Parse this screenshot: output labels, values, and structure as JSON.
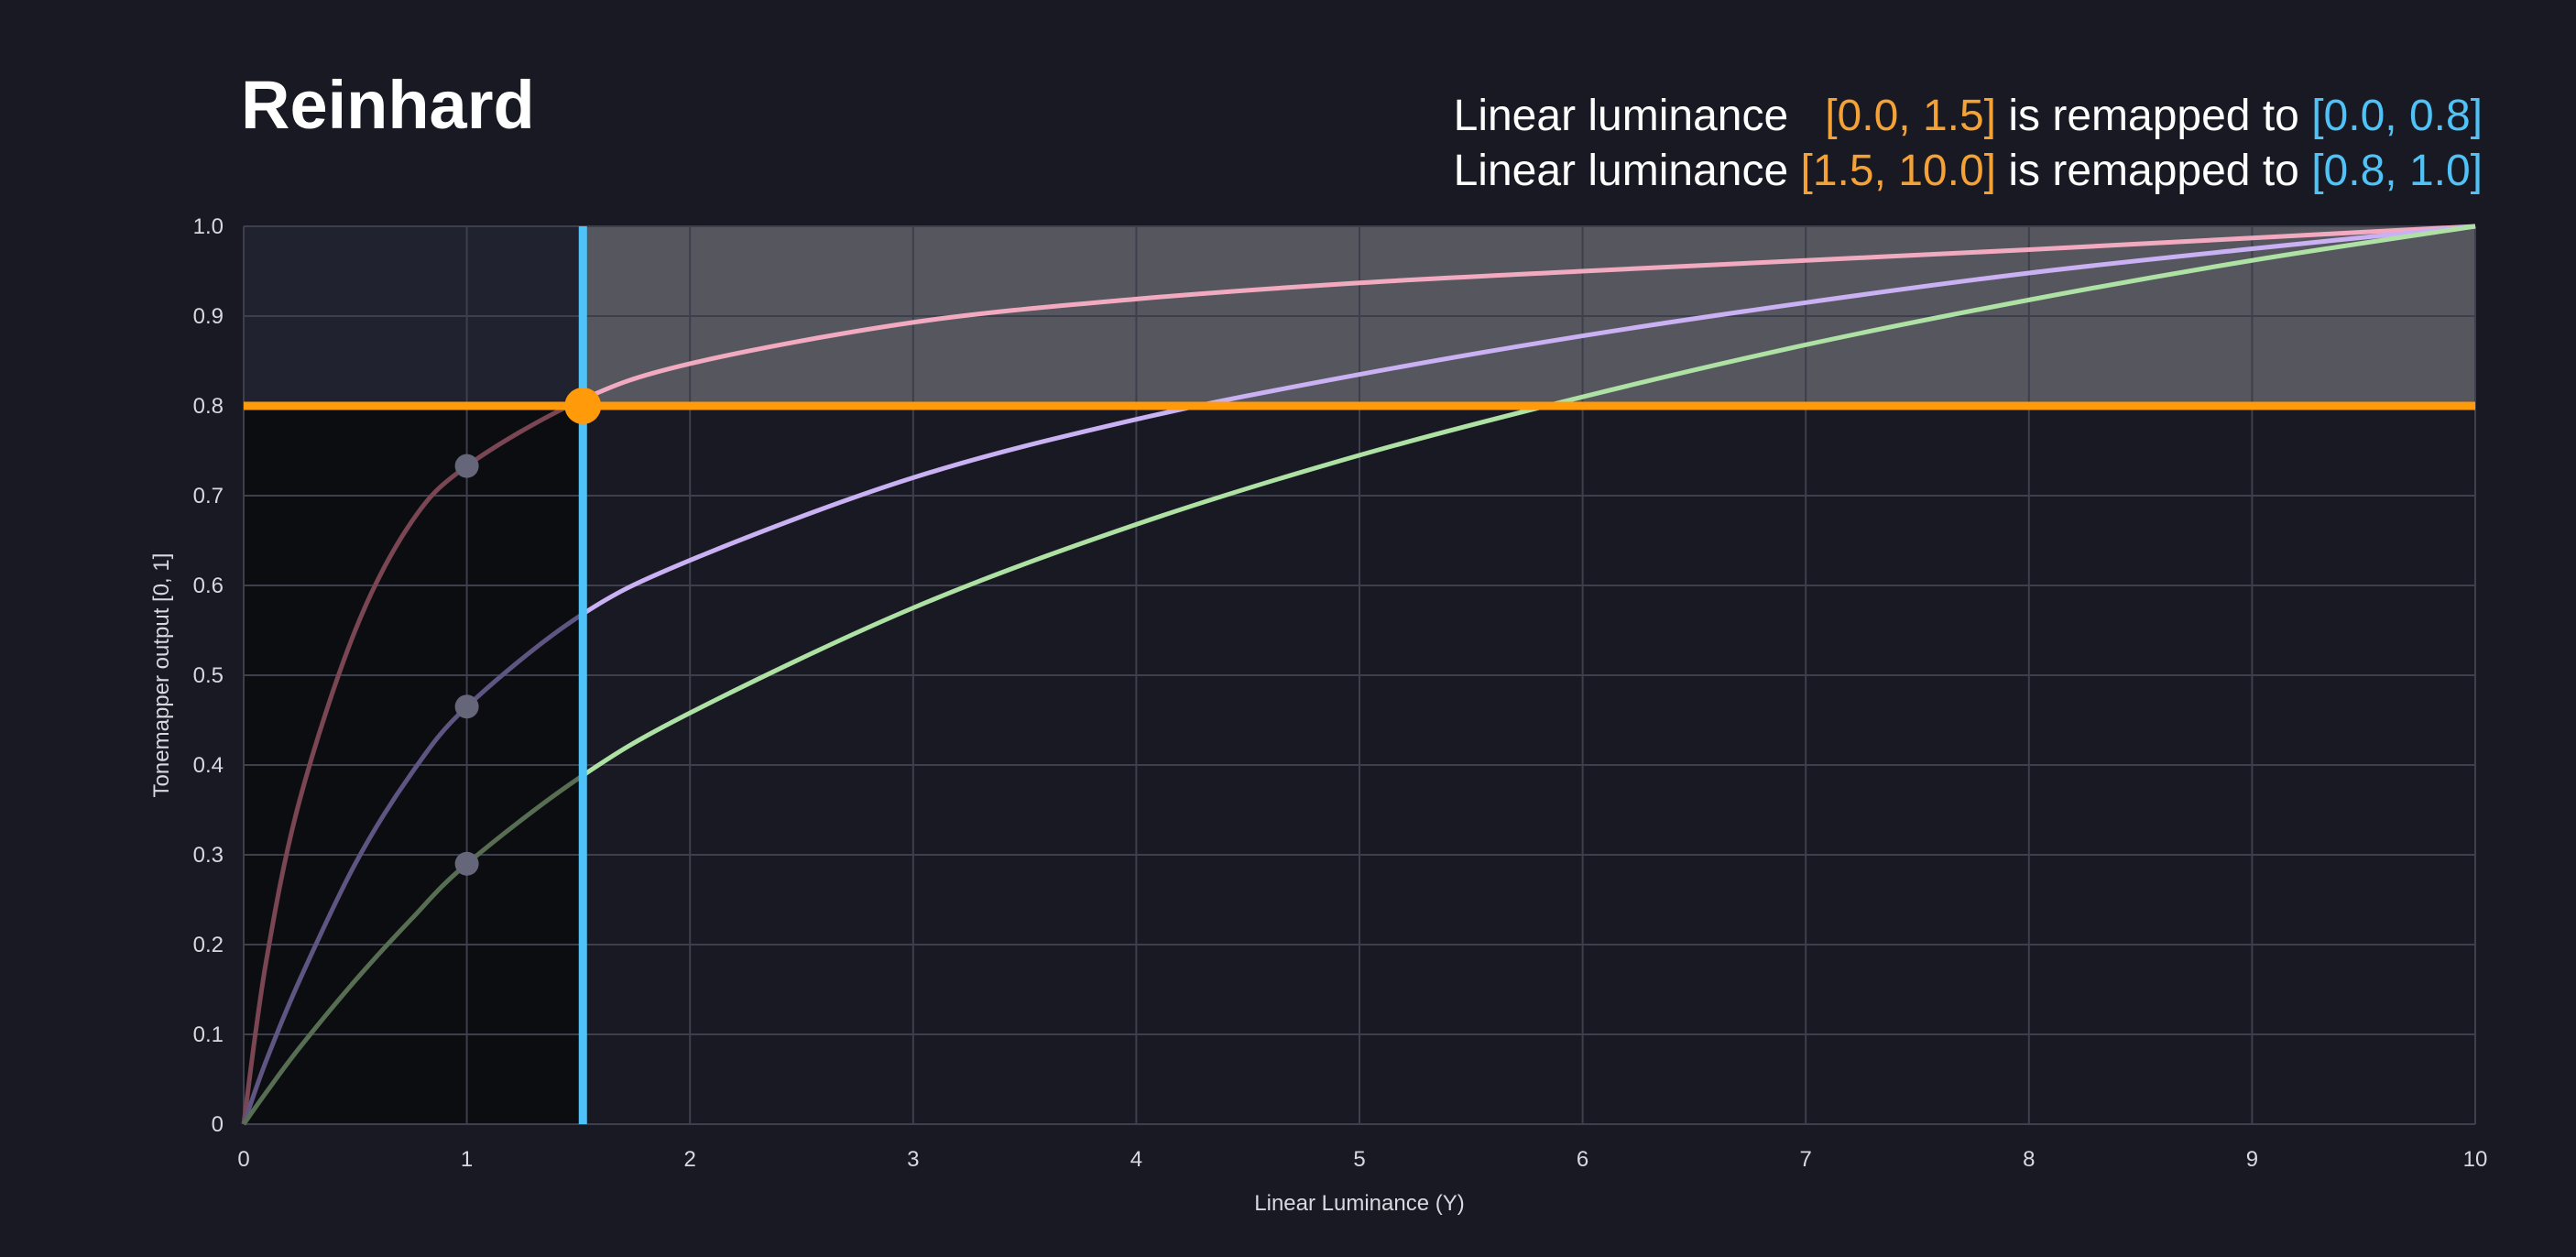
{
  "chart_data": {
    "type": "line",
    "title": "Reinhard",
    "captions": [
      {
        "prefix": "Linear luminance",
        "input_range": "[0.0, 1.5]",
        "middle": "is remapped to",
        "output_range": "[0.0, 0.8]"
      },
      {
        "prefix": "Linear luminance",
        "input_range": "[1.5, 10.0]",
        "middle": "is remapped to",
        "output_range": "[0.8, 1.0]"
      }
    ],
    "xlabel": "Linear Luminance (Y)",
    "ylabel": "Tonemapper output [0, 1]",
    "xlim": [
      0,
      10
    ],
    "ylim": [
      0,
      1
    ],
    "xticks": [
      0,
      1,
      2,
      3,
      4,
      5,
      6,
      7,
      8,
      9,
      10
    ],
    "yticks": [
      0,
      0.1,
      0.2,
      0.3,
      0.4,
      0.5,
      0.6,
      0.7,
      0.8,
      0.9,
      1.0
    ],
    "ytick_labels": [
      "0",
      "0.1",
      "0.2",
      "0.3",
      "0.4",
      "0.5",
      "0.6",
      "0.7",
      "0.8",
      "0.9",
      "1.0"
    ],
    "xtick_labels": [
      "0",
      "1",
      "2",
      "3",
      "4",
      "5",
      "6",
      "7",
      "8",
      "9",
      "10"
    ],
    "grid": true,
    "series": [
      {
        "color": "#f2aac0",
        "dim_color": "#7a4654",
        "x": [
          0,
          0.1,
          0.25,
          0.5,
          0.75,
          1,
          1.5,
          2,
          3,
          4,
          5,
          6,
          7,
          8,
          9,
          10
        ],
        "y": [
          0,
          0.18,
          0.36,
          0.55,
          0.67,
          0.733,
          0.805,
          0.847,
          0.893,
          0.919,
          0.937,
          0.95,
          0.962,
          0.974,
          0.987,
          1.0
        ]
      },
      {
        "color": "#c9b1f3",
        "dim_color": "#5e5582",
        "x": [
          0,
          0.1,
          0.25,
          0.5,
          0.75,
          1,
          1.5,
          2,
          3,
          4,
          5,
          6,
          7,
          8,
          9,
          10
        ],
        "y": [
          0,
          0.07,
          0.16,
          0.29,
          0.39,
          0.465,
          0.565,
          0.628,
          0.72,
          0.785,
          0.835,
          0.878,
          0.915,
          0.948,
          0.975,
          1.0
        ]
      },
      {
        "color": "#aee2a4",
        "dim_color": "#586e52",
        "x": [
          0,
          0.1,
          0.25,
          0.5,
          0.75,
          1,
          1.5,
          2,
          3,
          4,
          5,
          6,
          7,
          8,
          9,
          10
        ],
        "y": [
          0,
          0.035,
          0.085,
          0.16,
          0.228,
          0.29,
          0.385,
          0.458,
          0.575,
          0.668,
          0.745,
          0.81,
          0.868,
          0.918,
          0.962,
          1.0
        ]
      }
    ],
    "markers": [
      {
        "x": 1,
        "y": 0.733,
        "color": "#65667a"
      },
      {
        "x": 1,
        "y": 0.465,
        "color": "#65667a"
      },
      {
        "x": 1,
        "y": 0.29,
        "color": "#65667a"
      }
    ],
    "threshold": {
      "x": 1.52,
      "y": 0.8,
      "vertical_color": "#4fc3f7",
      "horizontal_color": "#ff9a0a"
    },
    "colors": {
      "background": "#181922",
      "grid": "#3d3f4c",
      "axis_text": "#d8d9e0",
      "highlight_orange": "#f4a236",
      "highlight_blue": "#4fc3f7",
      "upper_band": "#5a5a62",
      "lower_left_shade": "#0c0d10",
      "upper_left_shade": "#202230"
    }
  }
}
